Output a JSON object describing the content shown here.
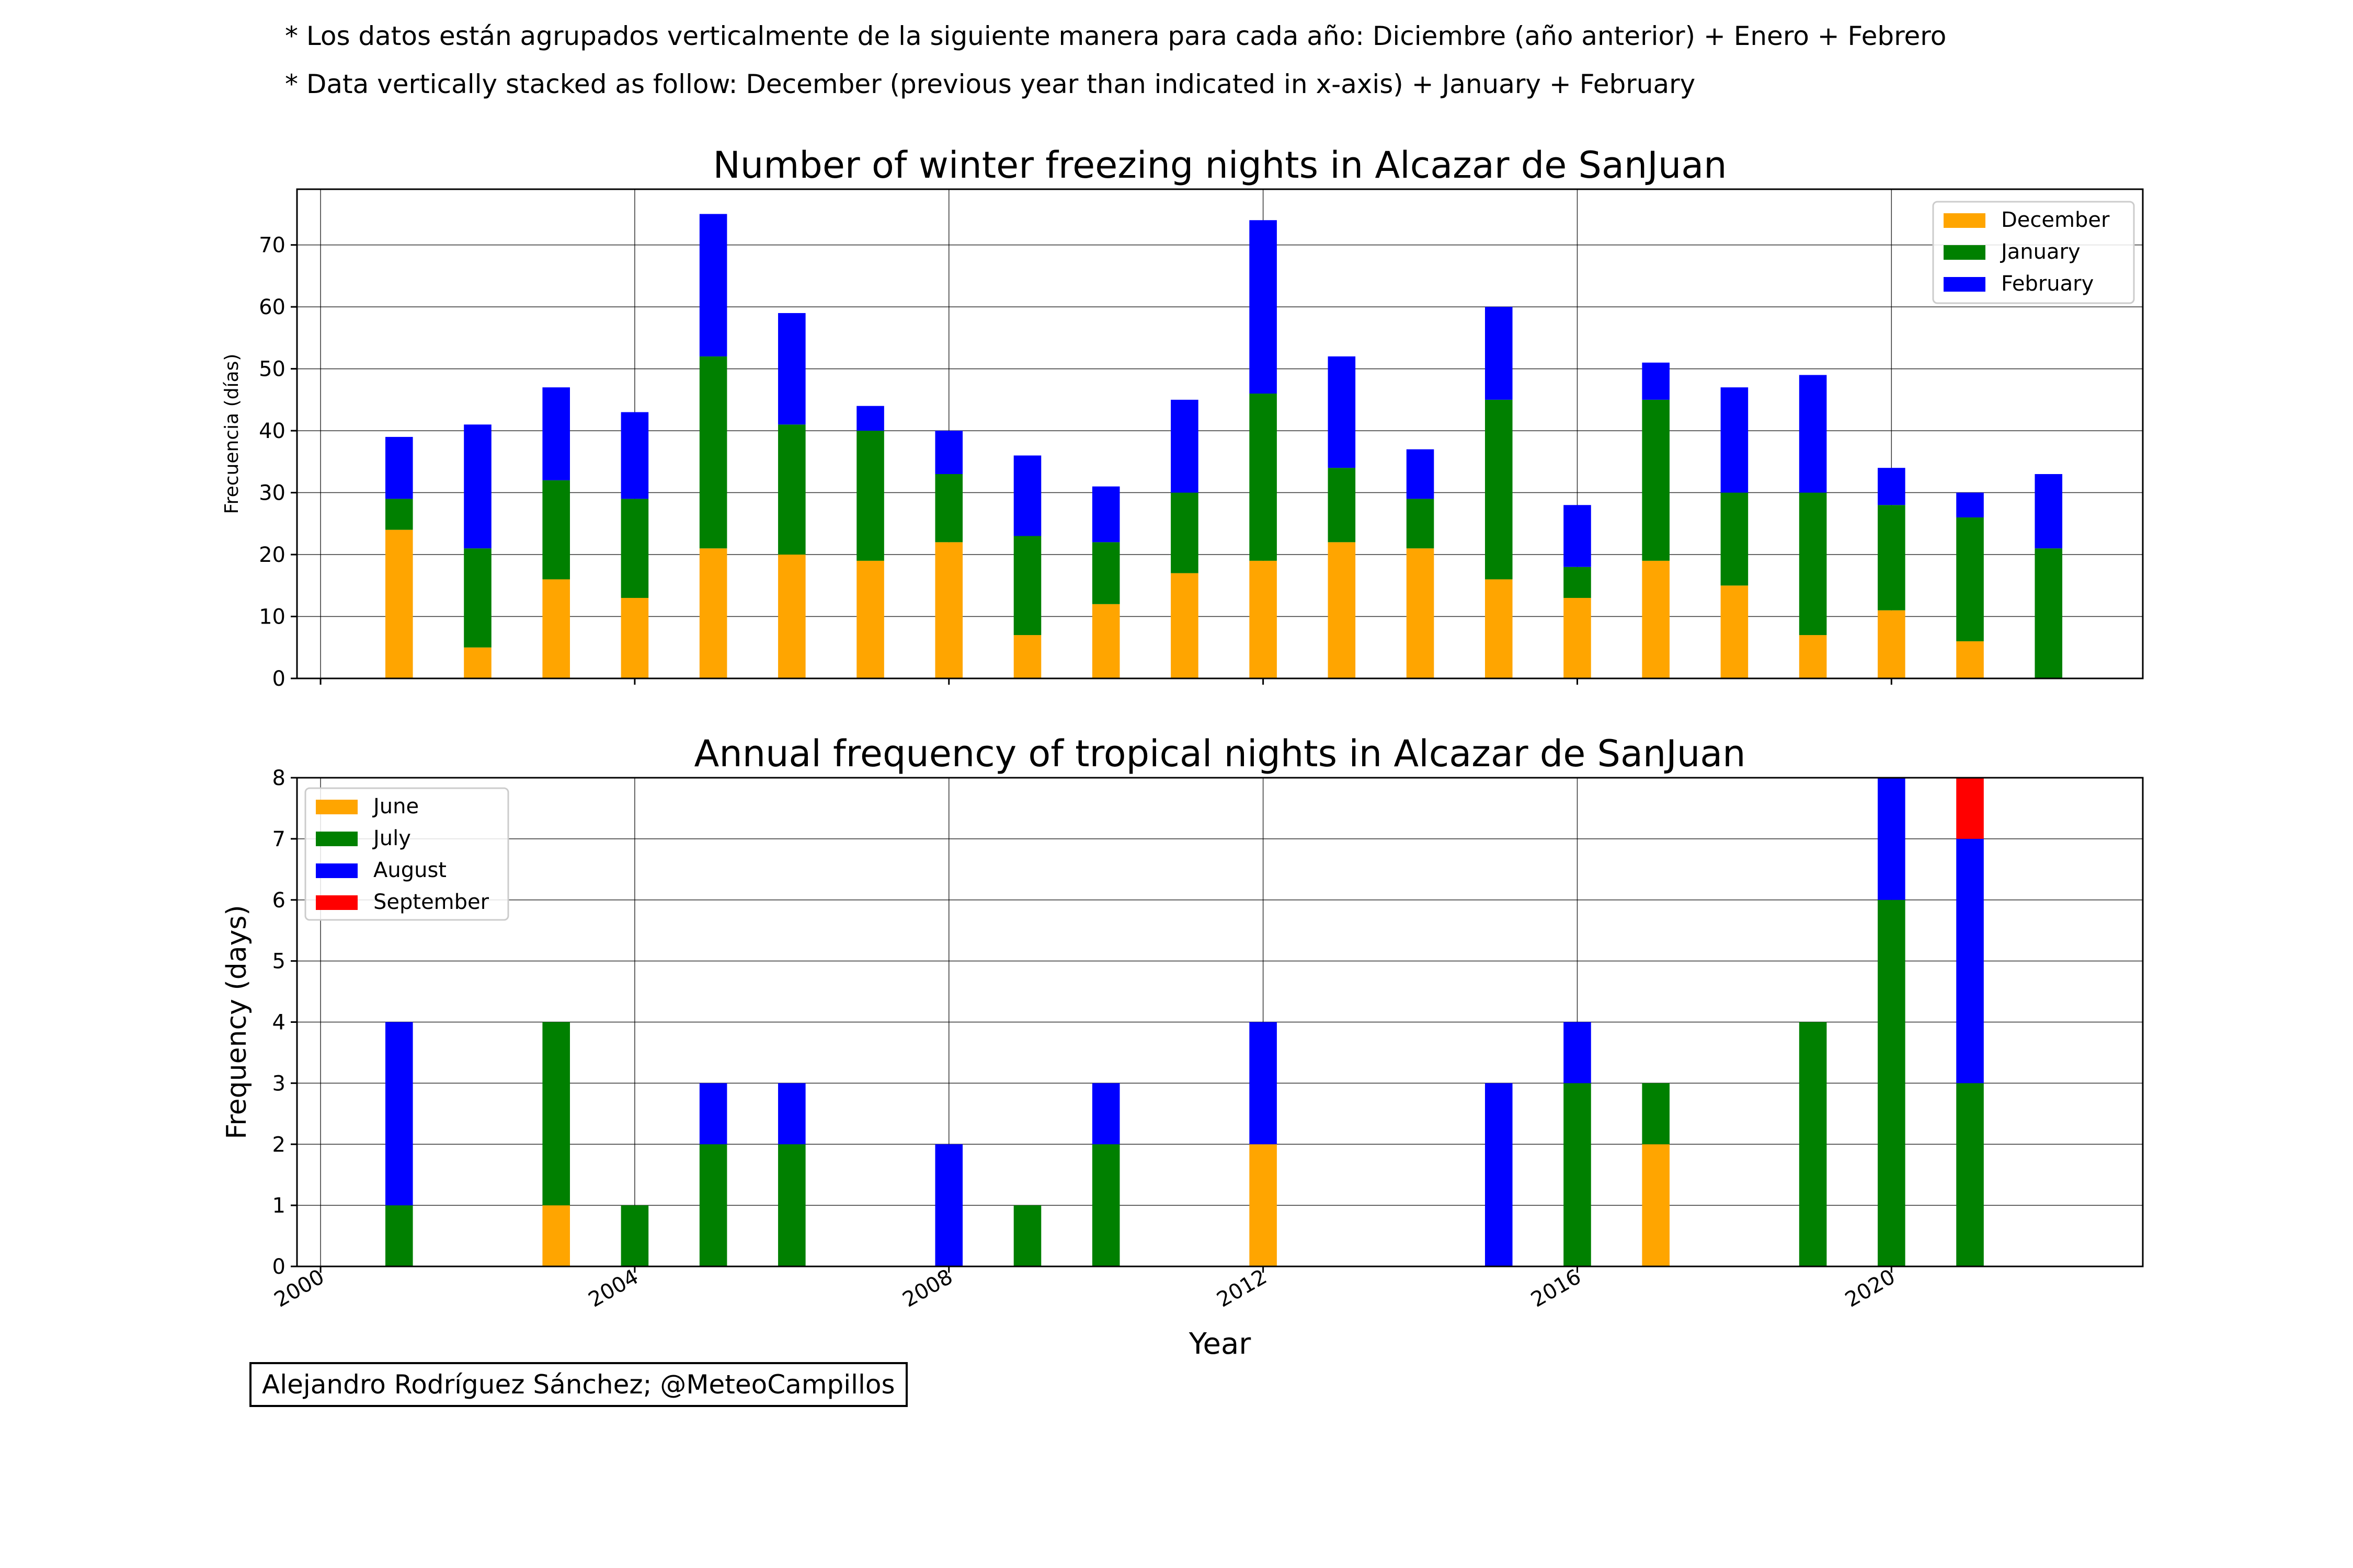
{
  "notes": {
    "es": "* Los datos están agrupados verticalmente de la siguiente manera para cada año: Diciembre (año anterior) + Enero  + Febrero",
    "en": "* Data vertically stacked as follow: December (previous year than indicated in x-axis) + January  + February"
  },
  "credit": "Alejandro Rodríguez Sánchez; @MeteoCampillos",
  "chart_data": [
    {
      "type": "bar",
      "stacked": true,
      "title": "Number of winter freezing nights in Alcazar de SanJuan",
      "xlabel": "",
      "ylabel": "Frecuencia (días)",
      "ylim": [
        0,
        79
      ],
      "yticks": [
        0,
        10,
        20,
        30,
        40,
        50,
        60,
        70
      ],
      "xlim": [
        1999.7,
        2023.2
      ],
      "xticks": [
        2000,
        2004,
        2008,
        2012,
        2016,
        2020
      ],
      "xtick_labels": [],
      "grid": true,
      "legend": "top-right",
      "x": [
        2001,
        2002,
        2003,
        2004,
        2005,
        2006,
        2007,
        2008,
        2009,
        2010,
        2011,
        2012,
        2013,
        2014,
        2015,
        2016,
        2017,
        2018,
        2019,
        2020,
        2021,
        2022
      ],
      "series": [
        {
          "name": "December",
          "color": "#ffa500",
          "values": [
            24,
            5,
            16,
            13,
            21,
            20,
            19,
            22,
            7,
            12,
            17,
            19,
            22,
            21,
            16,
            13,
            19,
            15,
            7,
            11,
            6,
            0
          ]
        },
        {
          "name": "January",
          "color": "#008000",
          "values": [
            5,
            16,
            16,
            16,
            31,
            21,
            21,
            11,
            16,
            10,
            13,
            27,
            12,
            8,
            29,
            5,
            26,
            15,
            23,
            17,
            20,
            21
          ]
        },
        {
          "name": "February",
          "color": "#0000ff",
          "values": [
            10,
            20,
            15,
            14,
            23,
            18,
            4,
            7,
            13,
            9,
            15,
            28,
            18,
            8,
            15,
            10,
            6,
            17,
            19,
            6,
            4,
            12
          ]
        }
      ]
    },
    {
      "type": "bar",
      "stacked": true,
      "title": "Annual frequency of tropical nights in Alcazar de SanJuan",
      "xlabel": "Year",
      "ylabel": "Frequency (days)",
      "ylim": [
        0,
        8
      ],
      "yticks": [
        0,
        1,
        2,
        3,
        4,
        5,
        6,
        7,
        8
      ],
      "xlim": [
        1999.7,
        2023.2
      ],
      "xticks": [
        2000,
        2004,
        2008,
        2012,
        2016,
        2020
      ],
      "xtick_labels": [
        "2000",
        "2004",
        "2008",
        "2012",
        "2016",
        "2020"
      ],
      "grid": true,
      "legend": "top-left",
      "x": [
        2001,
        2002,
        2003,
        2004,
        2005,
        2006,
        2007,
        2008,
        2009,
        2010,
        2011,
        2012,
        2013,
        2014,
        2015,
        2016,
        2017,
        2018,
        2019,
        2020,
        2021,
        2022
      ],
      "series": [
        {
          "name": "June",
          "color": "#ffa500",
          "values": [
            0,
            0,
            1,
            0,
            0,
            0,
            0,
            0,
            0,
            0,
            0,
            2,
            0,
            0,
            0,
            0,
            2,
            0,
            0,
            0,
            0,
            0
          ]
        },
        {
          "name": "July",
          "color": "#008000",
          "values": [
            1,
            0,
            3,
            1,
            2,
            2,
            0,
            0,
            1,
            2,
            0,
            0,
            0,
            0,
            0,
            3,
            1,
            0,
            4,
            6,
            3,
            0
          ]
        },
        {
          "name": "August",
          "color": "#0000ff",
          "values": [
            3,
            0,
            0,
            0,
            1,
            1,
            0,
            2,
            0,
            1,
            0,
            2,
            0,
            0,
            3,
            1,
            0,
            0,
            0,
            2,
            4,
            0
          ]
        },
        {
          "name": "September",
          "color": "#ff0000",
          "values": [
            0,
            0,
            0,
            0,
            0,
            0,
            0,
            0,
            0,
            0,
            0,
            0,
            0,
            0,
            0,
            0,
            0,
            0,
            0,
            0,
            1,
            0
          ]
        }
      ]
    }
  ]
}
